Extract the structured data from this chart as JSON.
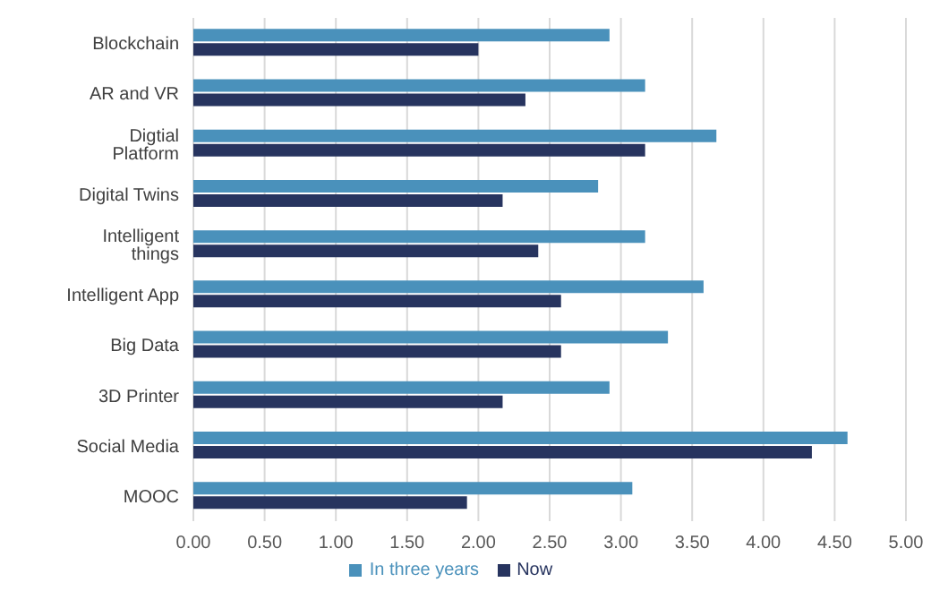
{
  "chart_data": {
    "type": "bar",
    "orientation": "horizontal",
    "categories": [
      "Blockchain",
      "AR and VR",
      "Digtial Platform",
      "Digital Twins",
      "Intelligent things",
      "Intelligent App",
      "Big Data",
      "3D Printer",
      "Social Media",
      "MOOC"
    ],
    "series": [
      {
        "name": "In three years",
        "color": "#4a91bb",
        "values": [
          2.92,
          3.17,
          3.67,
          2.84,
          3.17,
          3.58,
          3.33,
          2.92,
          4.59,
          3.08
        ]
      },
      {
        "name": "Now",
        "color": "#27345f",
        "values": [
          2.0,
          2.33,
          3.17,
          2.17,
          2.42,
          2.58,
          2.58,
          2.17,
          4.34,
          1.92
        ]
      }
    ],
    "xlim": [
      0,
      5
    ],
    "xticks": [
      {
        "value": 0,
        "label": "0.00"
      },
      {
        "value": 0.5,
        "label": "0.50"
      },
      {
        "value": 1,
        "label": "1.00"
      },
      {
        "value": 1.5,
        "label": "1.50"
      },
      {
        "value": 2,
        "label": "2.00"
      },
      {
        "value": 2.5,
        "label": "2.50"
      },
      {
        "value": 3,
        "label": "3.00"
      },
      {
        "value": 3.5,
        "label": "3.50"
      },
      {
        "value": 4,
        "label": "4.00"
      },
      {
        "value": 4.5,
        "label": "4.50"
      },
      {
        "value": 5,
        "label": "5.00"
      }
    ],
    "grid": "x",
    "legend": "bottom"
  }
}
